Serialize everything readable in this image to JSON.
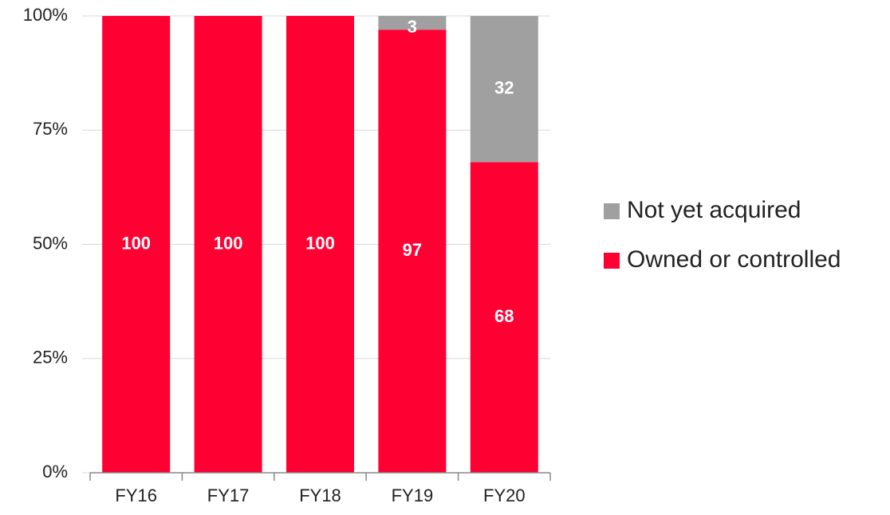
{
  "chart_data": {
    "type": "stacked_bar",
    "categories": [
      "FY16",
      "FY17",
      "FY18",
      "FY19",
      "FY20"
    ],
    "series": [
      {
        "name": "Owned or controlled",
        "color": "#ff0033",
        "values": [
          100,
          100,
          100,
          97,
          68
        ]
      },
      {
        "name": "Not yet acquired",
        "color": "#a0a0a0",
        "values": [
          0,
          0,
          0,
          3,
          32
        ]
      }
    ],
    "ylim": [
      0,
      100
    ],
    "yticks": [
      {
        "value": 0,
        "label": "0%"
      },
      {
        "value": 25,
        "label": "25%"
      },
      {
        "value": 50,
        "label": "50%"
      },
      {
        "value": 75,
        "label": "75%"
      },
      {
        "value": 100,
        "label": "100%"
      }
    ],
    "grid": true,
    "legend": "right"
  }
}
